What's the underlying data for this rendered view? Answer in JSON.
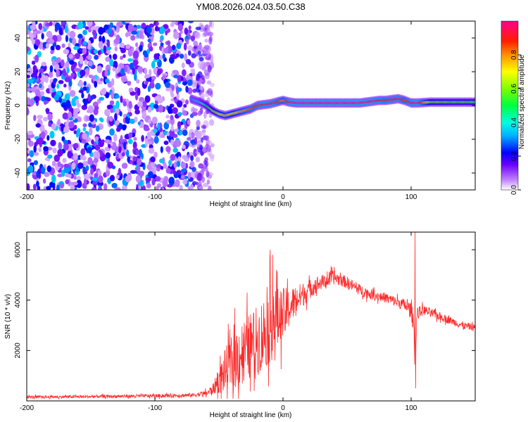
{
  "title": "YM08.2026.024.03.50.C38",
  "chart_data": [
    {
      "type": "heatmap",
      "name": "spectrogram",
      "xlabel": "Height of straight line (km)",
      "ylabel": "Frequency (Hz)",
      "xlim": [
        -200,
        150
      ],
      "ylim": [
        -50,
        50
      ],
      "xticks": [
        -200,
        -100,
        0,
        100
      ],
      "yticks": [
        -40,
        -20,
        0,
        20,
        40
      ],
      "colorbar": {
        "label": "Normalized spectral amplitude",
        "range": [
          0,
          1
        ],
        "ticks": [
          0.0,
          0.2,
          0.4,
          0.6,
          0.8
        ],
        "colormap": [
          "#ffffff",
          "#8a2be2",
          "#0000ff",
          "#00ffff",
          "#00ff00",
          "#ffff00",
          "#ff8000",
          "#ff0000",
          "#ff00a0"
        ]
      },
      "noise_region": {
        "x_range": [
          -200,
          -55
        ],
        "y_range": [
          -50,
          50
        ],
        "amplitude": 0.15
      },
      "ridge": {
        "x": [
          -72,
          -65,
          -60,
          -55,
          -50,
          -45,
          -40,
          -35,
          -30,
          -25,
          -20,
          -15,
          -10,
          -5,
          0,
          5,
          10,
          20,
          40,
          60,
          75,
          80,
          90,
          95,
          100,
          105,
          115,
          130,
          150
        ],
        "freq": [
          4,
          2,
          0,
          -3,
          -5,
          -6,
          -5,
          -4,
          -3,
          -2,
          0,
          0.5,
          1,
          2,
          3,
          2,
          1.5,
          1.5,
          1.5,
          1.5,
          3,
          3,
          4,
          3,
          1.5,
          1.5,
          2,
          2,
          2
        ],
        "amplitude": [
          0.3,
          0.35,
          0.5,
          0.6,
          0.7,
          0.75,
          0.7,
          0.75,
          0.8,
          0.85,
          0.9,
          0.95,
          0.95,
          0.9,
          0.8,
          0.95,
          1.0,
          1.0,
          1.0,
          1.0,
          0.95,
          0.9,
          0.95,
          0.85,
          0.95,
          1.0,
          0.6,
          0.55,
          0.55
        ]
      }
    },
    {
      "type": "line",
      "name": "snr",
      "xlabel": "Height of straight line (km)",
      "ylabel": "SNR (10 * v/v)",
      "xlim": [
        -200,
        150
      ],
      "ylim": [
        0,
        6700
      ],
      "xticks": [
        -200,
        -100,
        0,
        100
      ],
      "yticks": [
        2000,
        4000,
        6000
      ],
      "color": "#ff2a2a",
      "envelope": {
        "x": [
          -200,
          -150,
          -100,
          -70,
          -60,
          -55,
          -50,
          -45,
          -40,
          -35,
          -30,
          -25,
          -20,
          -15,
          -10,
          -5,
          0,
          5,
          10,
          15,
          20,
          25,
          30,
          35,
          40,
          45,
          50,
          60,
          70,
          80,
          90,
          95,
          100,
          102,
          103,
          104,
          105,
          110,
          115,
          120,
          130,
          140,
          150
        ],
        "mean": [
          150,
          170,
          200,
          230,
          300,
          450,
          800,
          1200,
          1500,
          1800,
          2000,
          2200,
          2400,
          2700,
          3000,
          3200,
          3400,
          3700,
          4000,
          4200,
          4400,
          4600,
          4700,
          4800,
          4900,
          4800,
          4700,
          4400,
          4200,
          4100,
          3900,
          3800,
          3600,
          3000,
          2000,
          3000,
          3500,
          3600,
          3500,
          3400,
          3200,
          3000,
          2900
        ],
        "noise": [
          60,
          60,
          70,
          80,
          120,
          200,
          500,
          900,
          1100,
          1300,
          1300,
          1300,
          1400,
          1500,
          1500,
          1300,
          1100,
          800,
          600,
          500,
          400,
          350,
          300,
          300,
          280,
          250,
          240,
          220,
          200,
          200,
          220,
          250,
          300,
          500,
          600,
          500,
          250,
          200,
          180,
          170,
          150,
          150,
          140
        ]
      },
      "spikes": [
        {
          "x": -10,
          "y": 6000
        },
        {
          "x": -8,
          "y": 5800
        },
        {
          "x": -5,
          "y": 5200
        },
        {
          "x": 103,
          "y": 6700
        },
        {
          "x": 103.5,
          "y": 500
        }
      ]
    }
  ]
}
